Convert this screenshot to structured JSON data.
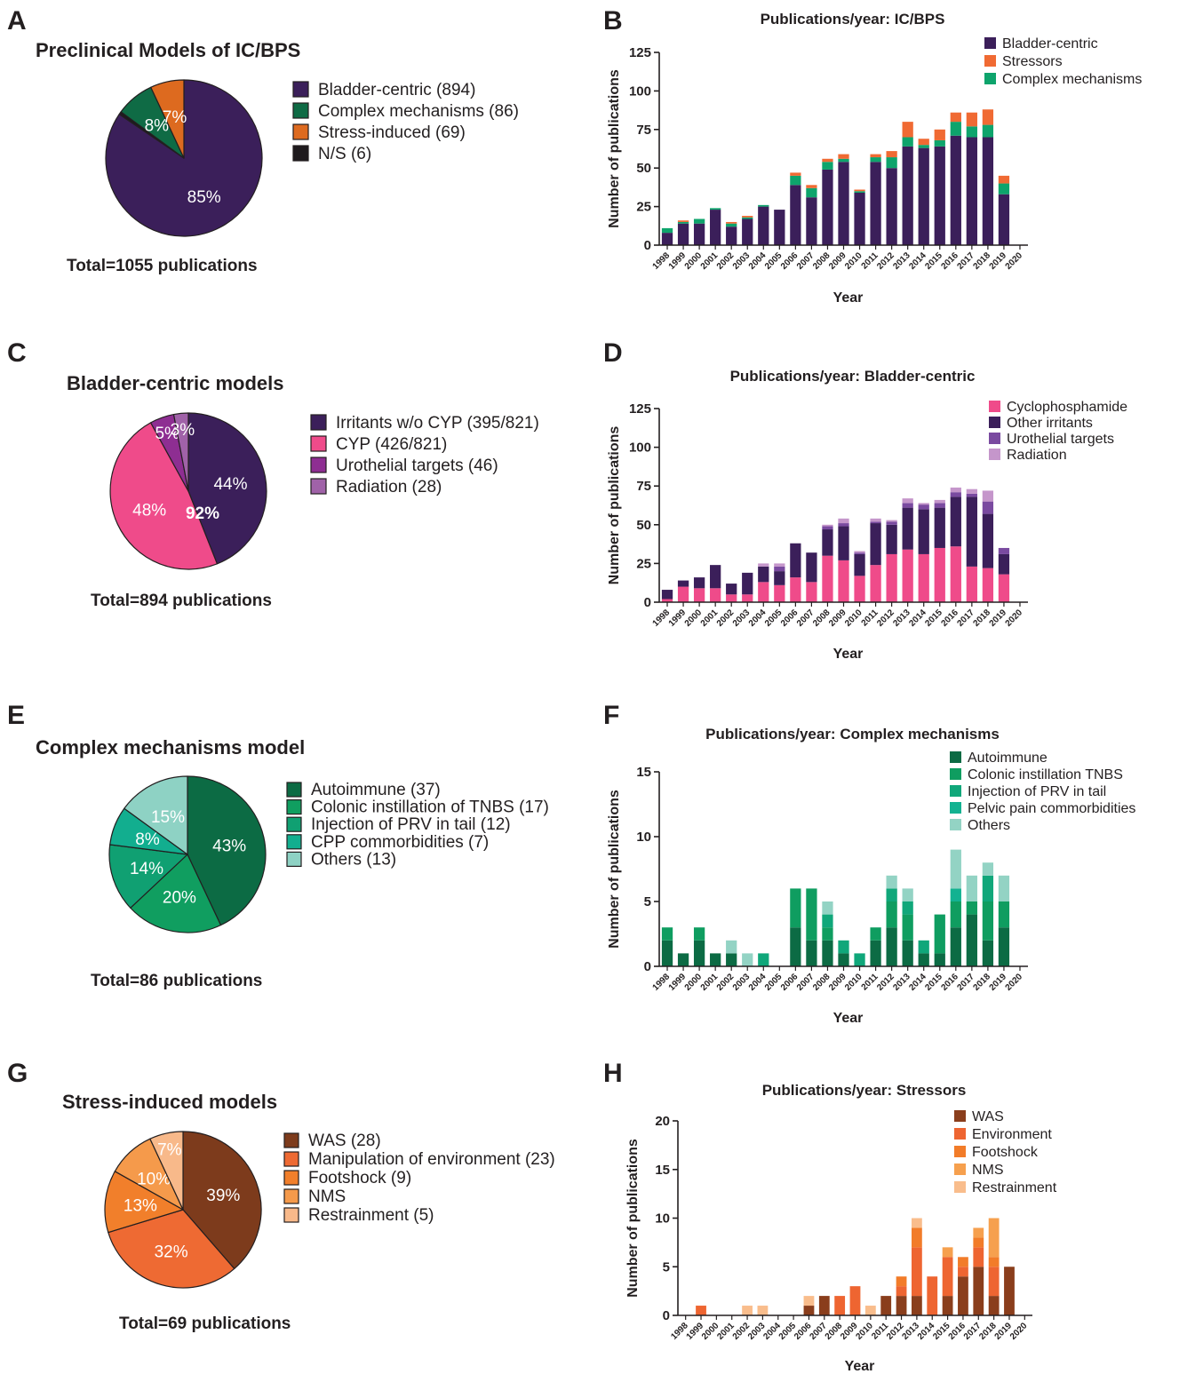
{
  "panels": {
    "a": "A",
    "b": "B",
    "c": "C",
    "d": "D",
    "e": "E",
    "f": "F",
    "g": "G",
    "h": "H"
  },
  "chart_data": [
    {
      "id": "pieA",
      "type": "pie",
      "title": "Preclinical Models of IC/BPS",
      "total": "Total=1055 publications",
      "slices": [
        {
          "label": "Bladder-centric (894)",
          "value": 85,
          "pct_label": "85%",
          "color": "#3b1f5a"
        },
        {
          "label": "Complex mechanisms (86)",
          "value": 8,
          "pct_label": "8%",
          "color": "#0f6b45"
        },
        {
          "label": "Stress-induced (69)",
          "value": 7,
          "pct_label": "7%",
          "color": "#dd6a1f"
        },
        {
          "label": "N/S (6)",
          "value": 0.6,
          "pct_label": "",
          "color": "#1e1a1d"
        }
      ],
      "pie_order": [
        0,
        3,
        1,
        2
      ]
    },
    {
      "id": "pieC",
      "type": "pie",
      "title": "Bladder-centric models",
      "total": "Total=894 publications",
      "slices": [
        {
          "label": "Irritants w/o CYP (395/821)",
          "value": 44,
          "pct_label": "44%",
          "color": "#3b1f5a"
        },
        {
          "label": "CYP (426/821)",
          "value": 48,
          "pct_label": "48%",
          "color": "#ef4b8a"
        },
        {
          "label": "Urothelial targets (46)",
          "value": 5,
          "pct_label": "5%",
          "color": "#8e2e92"
        },
        {
          "label": "Radiation (28)",
          "value": 3,
          "pct_label": "3%",
          "color": "#a062a8"
        }
      ],
      "pie_order": [
        0,
        1,
        2,
        3
      ],
      "center_label": "92%"
    },
    {
      "id": "pieE",
      "type": "pie",
      "title": "Complex mechanisms model",
      "total": "Total=86 publications",
      "slices": [
        {
          "label": "Autoimmune (37)",
          "value": 43,
          "pct_label": "43%",
          "color": "#0c6b44"
        },
        {
          "label": "Colonic instillation of TNBS (17)",
          "value": 20,
          "pct_label": "20%",
          "color": "#109e60"
        },
        {
          "label": "Injection of PRV in tail (12)",
          "value": 14,
          "pct_label": "14%",
          "color": "#10a072"
        },
        {
          "label": "CPP commorbidities (7)",
          "value": 8,
          "pct_label": "8%",
          "color": "#12ae8f"
        },
        {
          "label": "Others (13)",
          "value": 15,
          "pct_label": "15%",
          "color": "#8ed2c4"
        }
      ],
      "pie_order": [
        0,
        1,
        2,
        3,
        4
      ]
    },
    {
      "id": "pieG",
      "type": "pie",
      "title": "Stress-induced models",
      "total": "Total=69 publications",
      "slices": [
        {
          "label": "WAS (28)",
          "value": 39,
          "pct_label": "39%",
          "color": "#7d3b1c"
        },
        {
          "label": "Manipulation of environment (23)",
          "value": 32,
          "pct_label": "32%",
          "color": "#ee6a33"
        },
        {
          "label": "Footshock (9)",
          "value": 13,
          "pct_label": "13%",
          "color": "#f17f2b"
        },
        {
          "label": "NMS",
          "value": 10,
          "pct_label": "10%",
          "color": "#f59a4b"
        },
        {
          "label": "Restrainment (5)",
          "value": 7,
          "pct_label": "7%",
          "color": "#f8b98a"
        }
      ],
      "pie_order": [
        0,
        1,
        2,
        3,
        4
      ]
    },
    {
      "id": "barB",
      "type": "bar",
      "stacked": true,
      "title": "Publications/year: IC/BPS",
      "xlabel": "Year",
      "ylabel": "Number of publications",
      "ylim": [
        0,
        125
      ],
      "yticks": [
        0,
        25,
        50,
        75,
        100,
        125
      ],
      "categories": [
        "1998",
        "1999",
        "2000",
        "2001",
        "2002",
        "2003",
        "2004",
        "2005",
        "2006",
        "2007",
        "2008",
        "2009",
        "2010",
        "2011",
        "2012",
        "2013",
        "2014",
        "2015",
        "2016",
        "2017",
        "2018",
        "2019",
        "2020"
      ],
      "series": [
        {
          "name": "Bladder-centric",
          "color": "#3b1f5a",
          "values": [
            8,
            14,
            14,
            23,
            12,
            17,
            25,
            23,
            39,
            31,
            49,
            54,
            34,
            54,
            50,
            64,
            63,
            64,
            71,
            70,
            70,
            33,
            0
          ]
        },
        {
          "name": "Complex mechanisms",
          "color": "#0ea46c",
          "values": [
            3,
            1,
            3,
            1,
            2,
            1,
            1,
            0,
            6,
            6,
            5,
            2,
            1,
            3,
            7,
            6,
            2,
            4,
            9,
            7,
            8,
            7,
            0
          ]
        },
        {
          "name": "Stressors",
          "color": "#f06a33",
          "values": [
            0,
            1,
            0,
            0,
            1,
            1,
            0,
            0,
            2,
            2,
            2,
            3,
            1,
            2,
            4,
            10,
            4,
            7,
            6,
            9,
            10,
            5,
            0
          ]
        }
      ],
      "legend_order": [
        0,
        2,
        1
      ]
    },
    {
      "id": "barD",
      "type": "bar",
      "stacked": true,
      "title": "Publications/year: Bladder-centric",
      "xlabel": "Year",
      "ylabel": "Number of publications",
      "ylim": [
        0,
        125
      ],
      "yticks": [
        0,
        25,
        50,
        75,
        100,
        125
      ],
      "categories": [
        "1998",
        "1999",
        "2000",
        "2001",
        "2002",
        "2003",
        "2004",
        "2005",
        "2006",
        "2007",
        "2008",
        "2009",
        "2010",
        "2011",
        "2012",
        "2013",
        "2014",
        "2015",
        "2016",
        "2017",
        "2018",
        "2019",
        "2020"
      ],
      "series": [
        {
          "name": "Cyclophosphamide",
          "color": "#ef4b8a",
          "values": [
            2,
            10,
            9,
            9,
            5,
            5,
            13,
            11,
            16,
            13,
            30,
            27,
            17,
            24,
            31,
            34,
            31,
            35,
            36,
            23,
            22,
            18,
            0
          ]
        },
        {
          "name": "Other irritants",
          "color": "#3b1f5a",
          "values": [
            6,
            4,
            7,
            15,
            7,
            14,
            10,
            9,
            22,
            19,
            17,
            22,
            14,
            27,
            19,
            27,
            29,
            26,
            32,
            45,
            35,
            13,
            0
          ]
        },
        {
          "name": "Urothelial targets",
          "color": "#7a4aa0",
          "values": [
            0,
            0,
            0,
            0,
            0,
            0,
            0,
            3,
            0,
            0,
            2,
            2,
            1,
            1,
            2,
            3,
            3,
            3,
            3,
            2,
            8,
            4,
            0
          ]
        },
        {
          "name": "Radiation",
          "color": "#c596cb",
          "values": [
            0,
            0,
            0,
            0,
            0,
            0,
            2,
            2,
            0,
            0,
            1,
            3,
            1,
            2,
            1,
            3,
            1,
            2,
            3,
            3,
            7,
            0,
            0
          ]
        }
      ],
      "legend_order": [
        0,
        1,
        2,
        3
      ]
    },
    {
      "id": "barF",
      "type": "bar",
      "stacked": true,
      "title": "Publications/year: Complex mechanisms",
      "xlabel": "Year",
      "ylabel": "Number of publications",
      "ylim": [
        0,
        15
      ],
      "yticks": [
        0,
        5,
        10,
        15
      ],
      "categories": [
        "1998",
        "1999",
        "2000",
        "2001",
        "2002",
        "2003",
        "2004",
        "2005",
        "2006",
        "2007",
        "2008",
        "2009",
        "2010",
        "2011",
        "2012",
        "2013",
        "2014",
        "2015",
        "2016",
        "2017",
        "2018",
        "2019",
        "2020"
      ],
      "series": [
        {
          "name": "Autoimmune",
          "color": "#0c6b44",
          "values": [
            2,
            1,
            2,
            1,
            1,
            0,
            0,
            0,
            3,
            2,
            2,
            1,
            0,
            2,
            3,
            2,
            1,
            1,
            3,
            4,
            2,
            3,
            0
          ]
        },
        {
          "name": "Colonic instillation TNBS",
          "color": "#0f9d60",
          "values": [
            1,
            0,
            1,
            0,
            0,
            0,
            0,
            0,
            3,
            4,
            1,
            0,
            0,
            1,
            2,
            2,
            0,
            3,
            2,
            1,
            3,
            2,
            0
          ]
        },
        {
          "name": "Injection of PRV in tail",
          "color": "#10a77a",
          "values": [
            0,
            0,
            0,
            0,
            0,
            0,
            1,
            0,
            0,
            0,
            1,
            1,
            1,
            0,
            1,
            1,
            1,
            0,
            0,
            0,
            2,
            0,
            0
          ]
        },
        {
          "name": "Pelvic pain commorbidities",
          "color": "#13b291",
          "values": [
            0,
            0,
            0,
            0,
            0,
            0,
            0,
            0,
            0,
            0,
            0,
            0,
            0,
            0,
            0,
            0,
            0,
            0,
            1,
            0,
            0,
            0,
            0
          ]
        },
        {
          "name": "Others",
          "color": "#93d3c4",
          "values": [
            0,
            0,
            0,
            0,
            1,
            1,
            0,
            0,
            0,
            0,
            1,
            0,
            0,
            0,
            1,
            1,
            0,
            0,
            3,
            2,
            1,
            2,
            0
          ]
        }
      ],
      "legend_order": [
        0,
        1,
        2,
        3,
        4
      ]
    },
    {
      "id": "barH",
      "type": "bar",
      "stacked": true,
      "title": "Publications/year: Stressors",
      "xlabel": "Year",
      "ylabel": "Number of publications",
      "ylim": [
        0,
        20
      ],
      "yticks": [
        0,
        5,
        10,
        15,
        20
      ],
      "categories": [
        "1998",
        "1999",
        "2000",
        "2001",
        "2002",
        "2003",
        "2004",
        "2005",
        "2006",
        "2007",
        "2008",
        "2009",
        "2010",
        "2011",
        "2012",
        "2013",
        "2014",
        "2015",
        "2016",
        "2017",
        "2018",
        "2019",
        "2020"
      ],
      "series": [
        {
          "name": "WAS",
          "color": "#8a3e1c",
          "values": [
            0,
            0,
            0,
            0,
            0,
            0,
            0,
            0,
            1,
            2,
            0,
            0,
            0,
            2,
            2,
            2,
            0,
            2,
            4,
            5,
            2,
            5,
            0
          ]
        },
        {
          "name": "Environment",
          "color": "#ee6531",
          "values": [
            0,
            1,
            0,
            0,
            0,
            0,
            0,
            0,
            0,
            0,
            2,
            3,
            0,
            0,
            1,
            5,
            4,
            4,
            1,
            2,
            3,
            0,
            0
          ]
        },
        {
          "name": "Footshock",
          "color": "#f27c29",
          "values": [
            0,
            0,
            0,
            0,
            0,
            0,
            0,
            0,
            0,
            0,
            0,
            0,
            0,
            0,
            1,
            2,
            0,
            0,
            1,
            1,
            1,
            0,
            0
          ]
        },
        {
          "name": "NMS",
          "color": "#f6a04e",
          "values": [
            0,
            0,
            0,
            0,
            0,
            0,
            0,
            0,
            0,
            0,
            0,
            0,
            0,
            0,
            0,
            0,
            0,
            1,
            0,
            1,
            4,
            0,
            0
          ]
        },
        {
          "name": "Restrainment",
          "color": "#f9bd8c",
          "values": [
            0,
            0,
            0,
            0,
            1,
            1,
            0,
            0,
            1,
            0,
            0,
            0,
            1,
            0,
            0,
            1,
            0,
            0,
            0,
            0,
            0,
            0,
            0
          ]
        }
      ],
      "legend_order": [
        0,
        1,
        2,
        3,
        4
      ]
    }
  ]
}
